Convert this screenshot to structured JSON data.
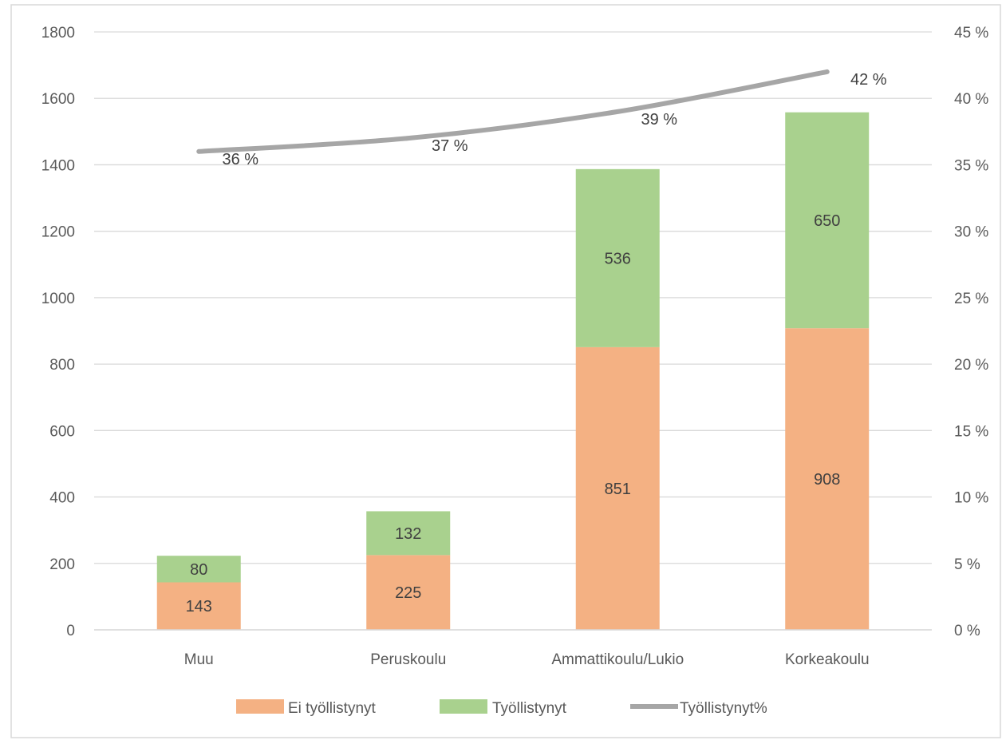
{
  "chart_data": {
    "type": "bar",
    "stacked": true,
    "categories": [
      "Muu",
      "Peruskoulu",
      "Ammattikoulu/Lukio",
      "Korkeakoulu"
    ],
    "series": [
      {
        "name": "Ei työllistynyt",
        "values": [
          143,
          225,
          851,
          908
        ],
        "color": "#f4b183",
        "axis": "left",
        "kind": "bar"
      },
      {
        "name": "Työllistynyt",
        "values": [
          80,
          132,
          536,
          650
        ],
        "color": "#a9d18e",
        "axis": "left",
        "kind": "bar"
      },
      {
        "name": "Työllistynyt%",
        "values": [
          36,
          37,
          39,
          42
        ],
        "color": "#a6a6a6",
        "axis": "right",
        "kind": "line",
        "labels": [
          "36 %",
          "37 %",
          "39 %",
          "42 %"
        ]
      }
    ],
    "ylim": [
      0,
      1800
    ],
    "y_ticks": [
      "0",
      "200",
      "400",
      "600",
      "800",
      "1000",
      "1200",
      "1400",
      "1600",
      "1800"
    ],
    "y2lim": [
      0,
      45
    ],
    "y2_ticks": [
      "0 %",
      "5 %",
      "10 %",
      "15 %",
      "20 %",
      "25 %",
      "30 %",
      "35 %",
      "40 %",
      "45 %"
    ],
    "grid": true,
    "legend": "bottom",
    "title": "",
    "xlabel": "",
    "ylabel": ""
  }
}
